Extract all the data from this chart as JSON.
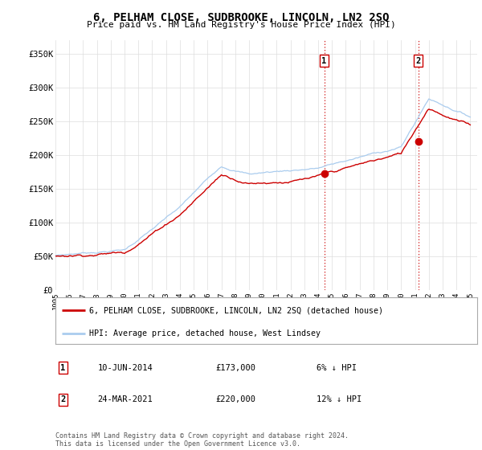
{
  "title": "6, PELHAM CLOSE, SUDBROOKE, LINCOLN, LN2 2SQ",
  "subtitle": "Price paid vs. HM Land Registry's House Price Index (HPI)",
  "ylabel_ticks": [
    "£0",
    "£50K",
    "£100K",
    "£150K",
    "£200K",
    "£250K",
    "£300K",
    "£350K"
  ],
  "ytick_values": [
    0,
    50000,
    100000,
    150000,
    200000,
    250000,
    300000,
    350000
  ],
  "ylim": [
    0,
    370000
  ],
  "xlim_start": 1995.0,
  "xlim_end": 2025.5,
  "hpi_color": "#aaccee",
  "price_color": "#cc0000",
  "marker1_date": 2014.44,
  "marker1_price": 173000,
  "marker1_label": "1",
  "marker2_date": 2021.23,
  "marker2_price": 220000,
  "marker2_label": "2",
  "vline_color": "#cc0000",
  "legend_label_price": "6, PELHAM CLOSE, SUDBROOKE, LINCOLN, LN2 2SQ (detached house)",
  "legend_label_hpi": "HPI: Average price, detached house, West Lindsey",
  "note1_num": "1",
  "note1_date": "10-JUN-2014",
  "note1_price": "£173,000",
  "note1_pct": "6% ↓ HPI",
  "note2_num": "2",
  "note2_date": "24-MAR-2021",
  "note2_price": "£220,000",
  "note2_pct": "12% ↓ HPI",
  "footer": "Contains HM Land Registry data © Crown copyright and database right 2024.\nThis data is licensed under the Open Government Licence v3.0.",
  "background_color": "#ffffff",
  "grid_color": "#dddddd"
}
